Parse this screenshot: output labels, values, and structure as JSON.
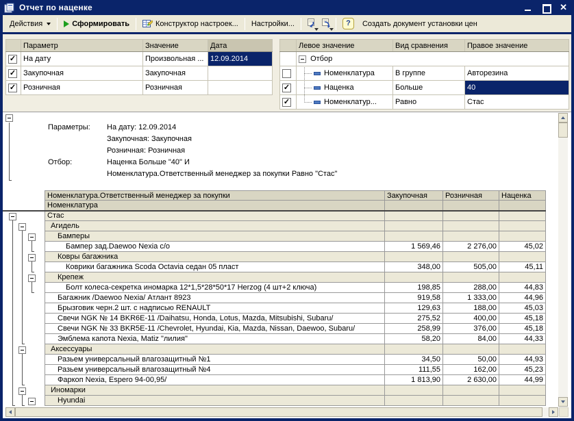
{
  "window": {
    "title": "Отчет по наценке"
  },
  "toolbar": {
    "actions_label": "Действия",
    "generate_label": "Сформировать",
    "constructor_label": "Конструктор настроек...",
    "settings_label": "Настройки...",
    "help_label": "?",
    "create_doc_label": "Создать документ установки цен"
  },
  "params_table": {
    "headers": [
      "Параметр",
      "Значение",
      "Дата"
    ],
    "rows": [
      {
        "checked": true,
        "param": "На дату",
        "value": "Произвольная ...",
        "date": "12.09.2014",
        "date_selected": true
      },
      {
        "checked": true,
        "param": "Закупочная",
        "value": "Закупочная",
        "date": "",
        "date_selected": false
      },
      {
        "checked": true,
        "param": "Розничная",
        "value": "Розничная",
        "date": "",
        "date_selected": false
      }
    ]
  },
  "filter_table": {
    "headers": [
      "Левое значение",
      "Вид сравнения",
      "Правое значение"
    ],
    "root_label": "Отбор",
    "rows": [
      {
        "checked": false,
        "left": "Номенклатура",
        "cmp": "В группе",
        "right": "Авторезина",
        "selected": false,
        "last": false
      },
      {
        "checked": true,
        "left": "Наценка",
        "cmp": "Больше",
        "right": "40",
        "selected": true,
        "last": false
      },
      {
        "checked": true,
        "left": "Номенклатур...",
        "cmp": "Равно",
        "right": "Стас",
        "selected": false,
        "last": true
      }
    ]
  },
  "report": {
    "params_label": "Параметры:",
    "params_lines": [
      "На дату: 12.09.2014",
      "Закупочная: Закупочная",
      "Розничная: Розничная"
    ],
    "filter_label": "Отбор:",
    "filter_lines": [
      "Наценка Больше \"40\" И",
      "Номенклатура.Ответственный менеджер за покупки Равно \"Стас\""
    ],
    "header_row1": [
      "Номенклатура.Ответственный менеджер за покупки",
      "Закупочная",
      "Розничная",
      "Наценка"
    ],
    "header_row2": "Номенклатура",
    "rows": [
      {
        "type": "group",
        "level": 0,
        "name": "Стас",
        "buy": "",
        "retail": "",
        "markup": ""
      },
      {
        "type": "group",
        "level": 1,
        "name": "Агидель",
        "buy": "",
        "retail": "",
        "markup": ""
      },
      {
        "type": "group",
        "level": 2,
        "name": "Бамперы",
        "buy": "",
        "retail": "",
        "markup": ""
      },
      {
        "type": "item",
        "level": 3,
        "name": "Бампер зад.Daewoo Nexia с/о",
        "buy": "1 569,46",
        "retail": "2 276,00",
        "markup": "45,02"
      },
      {
        "type": "group",
        "level": 2,
        "name": "Ковры багажника",
        "buy": "",
        "retail": "",
        "markup": ""
      },
      {
        "type": "item",
        "level": 3,
        "name": "Коврики багажника Scoda Octavia седан 05 пласт",
        "buy": "348,00",
        "retail": "505,00",
        "markup": "45,11"
      },
      {
        "type": "group",
        "level": 2,
        "name": "Крепеж",
        "buy": "",
        "retail": "",
        "markup": ""
      },
      {
        "type": "item",
        "level": 3,
        "name": "Болт колеса-секретка иномарка 12*1,5*28*50*17 Herzog (4 шт+2 ключа)",
        "buy": "198,85",
        "retail": "288,00",
        "markup": "44,83"
      },
      {
        "type": "item",
        "level": 2,
        "name": "Багажник /Daewoo Nexia/ Атлант 8923",
        "buy": "919,58",
        "retail": "1 333,00",
        "markup": "44,96"
      },
      {
        "type": "item",
        "level": 2,
        "name": "Брызговик черн.2 шт. с надписью RENAULT",
        "buy": "129,63",
        "retail": "188,00",
        "markup": "45,03"
      },
      {
        "type": "item",
        "level": 2,
        "name": "Свечи NGK № 14 BKR6E-11 /Daihatsu, Honda, Lotus, Mazda, Mitsubishi, Subaru/",
        "buy": "275,52",
        "retail": "400,00",
        "markup": "45,18"
      },
      {
        "type": "item",
        "level": 2,
        "name": "Свечи NGK № 33 BKR5E-11 /Chevrolet, Hyundai, Kia, Mazda, Nissan, Daewoo, Subaru/",
        "buy": "258,99",
        "retail": "376,00",
        "markup": "45,18"
      },
      {
        "type": "item",
        "level": 2,
        "name": "Эмблема капота  Nexia, Matiz \"лилия\"",
        "buy": "58,20",
        "retail": "84,00",
        "markup": "44,33"
      },
      {
        "type": "group",
        "level": 1,
        "name": "Аксессуары",
        "buy": "",
        "retail": "",
        "markup": ""
      },
      {
        "type": "item",
        "level": 2,
        "name": "Разьем универсальный влагозащитный №1",
        "buy": "34,50",
        "retail": "50,00",
        "markup": "44,93"
      },
      {
        "type": "item",
        "level": 2,
        "name": "Разьем универсальный влагозащитный №4",
        "buy": "111,55",
        "retail": "162,00",
        "markup": "45,23"
      },
      {
        "type": "item",
        "level": 2,
        "name": "Фаркоп Nexia, Espero 94-00,95/",
        "buy": "1 813,90",
        "retail": "2 630,00",
        "markup": "44,99"
      },
      {
        "type": "group",
        "level": 1,
        "name": "Иномарки",
        "buy": "",
        "retail": "",
        "markup": ""
      },
      {
        "type": "group",
        "level": 2,
        "name": "Hyundai",
        "buy": "",
        "retail": "",
        "markup": ""
      }
    ]
  },
  "colors": {
    "titlebar": "#0a246a",
    "toolbar_bg": "#ece9d8",
    "panel_bg": "#f1eee2",
    "table_header_bg": "#d9d6c3",
    "group_row_bg": "#ece9d8",
    "selection_bg": "#0a246a",
    "selection_text": "#ffffff",
    "play_green": "#1d9e1d"
  }
}
